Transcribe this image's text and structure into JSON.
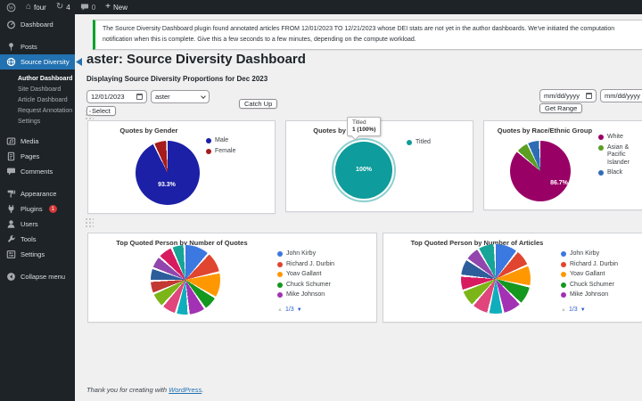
{
  "admin_bar": {
    "wordpress_logo": "wordpress-logo-icon",
    "site_name": "four",
    "update_count": "4",
    "comment_count": "0",
    "new_label": "New"
  },
  "sidebar": {
    "items": [
      {
        "label": "Dashboard",
        "icon": "dashboard-icon",
        "type": "top"
      },
      {
        "label": "Posts",
        "icon": "pin-icon",
        "type": "top",
        "gap": true
      },
      {
        "label": "Source Diversity",
        "icon": "globe-icon",
        "type": "top",
        "active": true
      },
      {
        "label": "Author Dashboard",
        "type": "sub",
        "current": true
      },
      {
        "label": "Site Dashboard",
        "type": "sub"
      },
      {
        "label": "Article Dashboard",
        "type": "sub"
      },
      {
        "label": "Request Annotation",
        "type": "sub"
      },
      {
        "label": "Settings",
        "type": "sub"
      },
      {
        "label": "Media",
        "icon": "media-icon",
        "type": "top",
        "gap": true
      },
      {
        "label": "Pages",
        "icon": "pages-icon",
        "type": "top"
      },
      {
        "label": "Comments",
        "icon": "comments-icon",
        "type": "top"
      },
      {
        "label": "Appearance",
        "icon": "appearance-icon",
        "type": "top",
        "gap": true
      },
      {
        "label": "Plugins",
        "icon": "plugins-icon",
        "type": "top",
        "badge": "1"
      },
      {
        "label": "Users",
        "icon": "users-icon",
        "type": "top"
      },
      {
        "label": "Tools",
        "icon": "tools-icon",
        "type": "top"
      },
      {
        "label": "Settings",
        "icon": "settings-icon",
        "type": "top"
      },
      {
        "label": "Collapse menu",
        "icon": "collapse-icon",
        "type": "top",
        "gap": true
      }
    ]
  },
  "notice": {
    "line1": "The Source Diversity Dashboard plugin found annotated articles FROM 12/01/2023 TO 12/21/2023 whose DEI stats are not yet in the author dashboards. We've initiated the computation",
    "line2": "notification when this is complete. Give this a few seconds to a few minutes, depending on the compute workload."
  },
  "page": {
    "title": "aster: Source Diversity Dashboard",
    "subtitle": "Displaying Source Diversity Proportions for Dec 2023"
  },
  "controls": {
    "date_value": "12/01/2023",
    "author_value": "aster",
    "catch_up_label": "Catch Up",
    "select_label": "Select",
    "range_start_placeholder": "mm/dd/yyyy",
    "range_end_placeholder": "mm/dd/yyyy",
    "get_range_label": "Get Range"
  },
  "chart_data": [
    {
      "type": "pie",
      "title": "Quotes by Gender",
      "legend_position": "right",
      "slices": [
        {
          "label": "Male",
          "value": 93.3,
          "color": "#1b20a6"
        },
        {
          "label": "Female",
          "value": 6.7,
          "color": "#a61b1b"
        }
      ],
      "data_label": "93.3%"
    },
    {
      "type": "pie",
      "title": "Quotes by Titled/Non",
      "legend_position": "right",
      "highlighted": true,
      "slices": [
        {
          "label": "Titled",
          "value": 100,
          "color": "#0e9c9c"
        }
      ],
      "data_label": "100%",
      "tooltip": {
        "name": "Titled",
        "value": "1 (100%)"
      }
    },
    {
      "type": "pie",
      "title": "Quotes by Race/Ethnic Group",
      "legend_position": "right",
      "slices": [
        {
          "label": "White",
          "value": 86.7,
          "color": "#990066"
        },
        {
          "label": "Asian & Pacific Islander",
          "value": 6.7,
          "color": "#5b9e23"
        },
        {
          "label": "Black",
          "value": 6.6,
          "color": "#2e6cb5"
        }
      ],
      "data_label": "86.7%"
    },
    {
      "type": "pie",
      "title": "Top Quoted Person by Number of Quotes",
      "legend_position": "right",
      "legend": [
        {
          "label": "John Kirby",
          "color": "#3b78e0"
        },
        {
          "label": "Richard J. Durbin",
          "color": "#e0452f"
        },
        {
          "label": "Yoav Gallant",
          "color": "#ff9800"
        },
        {
          "label": "Chuck Schumer",
          "color": "#14981f"
        },
        {
          "label": "Mike Johnson",
          "color": "#a231b3"
        }
      ],
      "slices": [
        {
          "value": 12,
          "color": "#3b78e0"
        },
        {
          "value": 10,
          "color": "#e0452f"
        },
        {
          "value": 12,
          "color": "#ff9800"
        },
        {
          "value": 7,
          "color": "#14981f"
        },
        {
          "value": 8,
          "color": "#a231b3"
        },
        {
          "value": 6,
          "color": "#10aebc"
        },
        {
          "value": 7,
          "color": "#e0457b"
        },
        {
          "value": 7,
          "color": "#7cb518"
        },
        {
          "value": 6,
          "color": "#c23934"
        },
        {
          "value": 6,
          "color": "#2d5e9b"
        },
        {
          "value": 6,
          "color": "#9246ad"
        },
        {
          "value": 7,
          "color": "#d81b60"
        },
        {
          "value": 6,
          "color": "#16a596"
        }
      ],
      "pager": {
        "current_page": "1/3"
      }
    },
    {
      "type": "pie",
      "title": "Top Quoted Person by Number of Articles",
      "legend_position": "right",
      "legend": [
        {
          "label": "John Kirby",
          "color": "#3b78e0"
        },
        {
          "label": "Richard J. Durbin",
          "color": "#e0452f"
        },
        {
          "label": "Yoav Gallant",
          "color": "#ff9800"
        },
        {
          "label": "Chuck Schumer",
          "color": "#14981f"
        },
        {
          "label": "Mike Johnson",
          "color": "#a231b3"
        }
      ],
      "slices": [
        {
          "value": 11,
          "color": "#3b78e0"
        },
        {
          "value": 8,
          "color": "#e0452f"
        },
        {
          "value": 10,
          "color": "#ff9800"
        },
        {
          "value": 9,
          "color": "#14981f"
        },
        {
          "value": 9,
          "color": "#a231b3"
        },
        {
          "value": 7,
          "color": "#10aebc"
        },
        {
          "value": 8,
          "color": "#e0457b"
        },
        {
          "value": 8,
          "color": "#7cb518"
        },
        {
          "value": 7,
          "color": "#d81b60"
        },
        {
          "value": 8,
          "color": "#2d5e9b"
        },
        {
          "value": 7,
          "color": "#9246ad"
        },
        {
          "value": 8,
          "color": "#16a596"
        }
      ],
      "pager": {
        "current_page": "1/3"
      }
    }
  ],
  "footer": {
    "text": "Thank you for creating with",
    "link_label": "WordPress",
    "suffix": "."
  }
}
